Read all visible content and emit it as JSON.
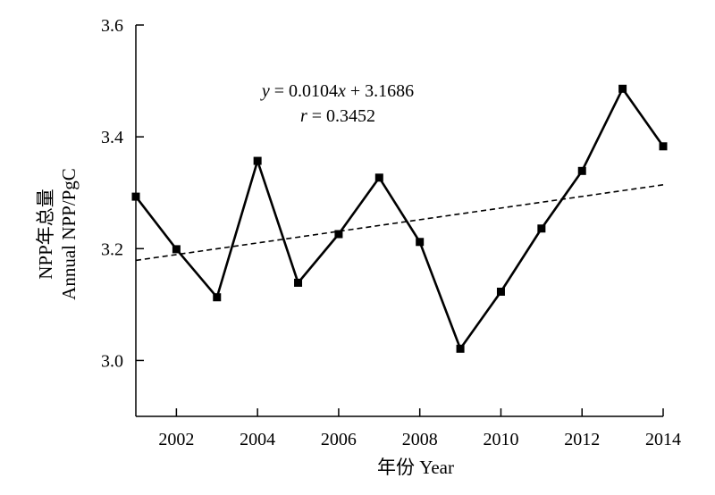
{
  "chart_data": {
    "type": "line",
    "xlabel": "年份 Year",
    "ylabel_line1": "NPP年总量",
    "ylabel_line2": "Annual NPP/PgC",
    "xlim": [
      2001,
      2014
    ],
    "ylim": [
      2.9,
      3.6
    ],
    "x_ticks": [
      2002,
      2004,
      2006,
      2008,
      2010,
      2012,
      2014
    ],
    "x_tick_labels": [
      "2002",
      "2004",
      "2006",
      "2008",
      "2010",
      "2012",
      "2014"
    ],
    "y_ticks": [
      3.0,
      3.2,
      3.4,
      3.6
    ],
    "y_tick_labels": [
      "3.0",
      "3.2",
      "3.4",
      "3.6"
    ],
    "x": [
      2001,
      2002,
      2003,
      2004,
      2005,
      2006,
      2007,
      2008,
      2009,
      2010,
      2011,
      2012,
      2013,
      2014
    ],
    "series": [
      {
        "values": [
          3.293,
          3.199,
          3.113,
          3.357,
          3.139,
          3.226,
          3.327,
          3.212,
          3.021,
          3.123,
          3.236,
          3.339,
          3.486,
          3.383
        ],
        "style": "solid",
        "marker": "square",
        "color": "#000000"
      }
    ],
    "trendline": {
      "slope": 0.0104,
      "intercept": 3.1686,
      "style": "dashed",
      "color": "#000000"
    },
    "annotations": {
      "equation": {
        "y_var": "y",
        "eq1": " = 0.0104",
        "x_var": "x",
        "eq2": " + 3.1686"
      },
      "r_value": {
        "r_var": "r",
        "eq": " = 0.3452"
      }
    },
    "grid": false
  }
}
